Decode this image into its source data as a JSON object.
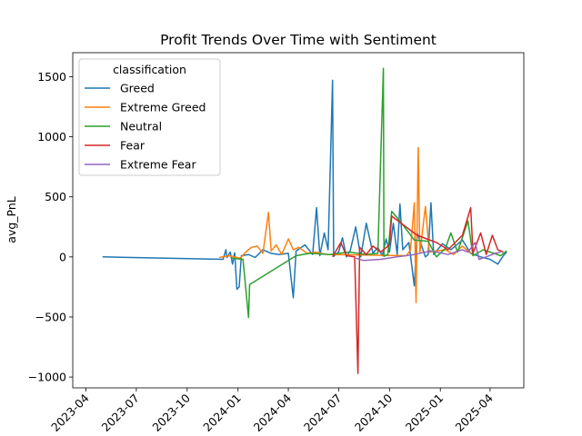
{
  "chart_data": {
    "type": "line",
    "title": "Profit Trends Over Time with Sentiment",
    "xlabel": "",
    "ylabel": "avg_PnL",
    "xlim": [
      "2023-03-08",
      "2025-06-01"
    ],
    "ylim": [
      -1090,
      1700
    ],
    "x_ticks": [
      "2023-04",
      "2023-07",
      "2023-10",
      "2024-01",
      "2024-04",
      "2024-07",
      "2024-10",
      "2025-01",
      "2025-04"
    ],
    "y_ticks": [
      -1000,
      -500,
      0,
      500,
      1000,
      1500
    ],
    "grid": false,
    "legend": {
      "title": "classification",
      "position": "top-left"
    },
    "series": [
      {
        "name": "Greed",
        "color": "#1f77b4",
        "points": [
          [
            "2023-05-01",
            0
          ],
          [
            "2023-12-05",
            -20
          ],
          [
            "2023-12-10",
            60
          ],
          [
            "2023-12-12",
            -5
          ],
          [
            "2023-12-18",
            40
          ],
          [
            "2023-12-22",
            -60
          ],
          [
            "2023-12-26",
            35
          ],
          [
            "2023-12-30",
            -270
          ],
          [
            "2024-01-03",
            -250
          ],
          [
            "2024-01-07",
            10
          ],
          [
            "2024-01-20",
            20
          ],
          [
            "2024-02-01",
            -5
          ],
          [
            "2024-02-15",
            60
          ],
          [
            "2024-03-01",
            30
          ],
          [
            "2024-03-15",
            20
          ],
          [
            "2024-04-01",
            30
          ],
          [
            "2024-04-10",
            -340
          ],
          [
            "2024-04-15",
            50
          ],
          [
            "2024-05-01",
            100
          ],
          [
            "2024-05-15",
            20
          ],
          [
            "2024-05-22",
            410
          ],
          [
            "2024-05-28",
            10
          ],
          [
            "2024-06-05",
            200
          ],
          [
            "2024-06-12",
            60
          ],
          [
            "2024-06-20",
            1470
          ],
          [
            "2024-06-22",
            5
          ],
          [
            "2024-07-01",
            40
          ],
          [
            "2024-07-08",
            160
          ],
          [
            "2024-07-15",
            0
          ],
          [
            "2024-07-22",
            50
          ],
          [
            "2024-08-01",
            250
          ],
          [
            "2024-08-10",
            0
          ],
          [
            "2024-08-20",
            280
          ],
          [
            "2024-09-01",
            30
          ],
          [
            "2024-09-10",
            80
          ],
          [
            "2024-09-18",
            10
          ],
          [
            "2024-09-25",
            150
          ],
          [
            "2024-10-01",
            40
          ],
          [
            "2024-10-08",
            280
          ],
          [
            "2024-10-15",
            20
          ],
          [
            "2024-10-20",
            440
          ],
          [
            "2024-10-25",
            60
          ],
          [
            "2024-11-05",
            120
          ],
          [
            "2024-11-15",
            -240
          ],
          [
            "2024-11-20",
            200
          ],
          [
            "2024-12-05",
            0
          ],
          [
            "2024-12-10",
            20
          ],
          [
            "2024-12-15",
            450
          ],
          [
            "2024-12-20",
            20
          ],
          [
            "2025-01-05",
            110
          ],
          [
            "2025-01-20",
            60
          ],
          [
            "2025-02-10",
            140
          ],
          [
            "2025-02-25",
            30
          ],
          [
            "2025-03-15",
            0
          ],
          [
            "2025-04-01",
            -20
          ],
          [
            "2025-04-15",
            -60
          ],
          [
            "2025-04-25",
            10
          ],
          [
            "2025-05-01",
            40
          ]
        ]
      },
      {
        "name": "Extreme Greed",
        "color": "#ff7f0e",
        "points": [
          [
            "2023-11-28",
            -5
          ],
          [
            "2023-12-15",
            10
          ],
          [
            "2024-01-05",
            -10
          ],
          [
            "2024-01-15",
            40
          ],
          [
            "2024-01-25",
            80
          ],
          [
            "2024-02-05",
            90
          ],
          [
            "2024-02-15",
            30
          ],
          [
            "2024-02-25",
            370
          ],
          [
            "2024-03-01",
            50
          ],
          [
            "2024-03-10",
            100
          ],
          [
            "2024-03-20",
            20
          ],
          [
            "2024-04-01",
            150
          ],
          [
            "2024-04-10",
            60
          ],
          [
            "2024-04-20",
            80
          ],
          [
            "2024-05-05",
            30
          ],
          [
            "2024-05-20",
            40
          ],
          [
            "2024-06-10",
            20
          ],
          [
            "2024-11-01",
            10
          ],
          [
            "2024-11-08",
            60
          ],
          [
            "2024-11-15",
            450
          ],
          [
            "2024-11-18",
            -380
          ],
          [
            "2024-11-22",
            910
          ],
          [
            "2024-11-25",
            30
          ],
          [
            "2024-12-05",
            420
          ],
          [
            "2024-12-12",
            40
          ],
          [
            "2025-01-10",
            60
          ],
          [
            "2025-01-25",
            20
          ],
          [
            "2025-02-10",
            90
          ],
          [
            "2025-02-25",
            30
          ]
        ]
      },
      {
        "name": "Neutral",
        "color": "#2ca02c",
        "points": [
          [
            "2023-12-20",
            -10
          ],
          [
            "2024-01-10",
            -20
          ],
          [
            "2024-01-20",
            -505
          ],
          [
            "2024-01-22",
            -230
          ],
          [
            "2024-04-15",
            10
          ],
          [
            "2024-05-10",
            30
          ],
          [
            "2024-06-15",
            20
          ],
          [
            "2024-07-20",
            40
          ],
          [
            "2024-08-20",
            20
          ],
          [
            "2024-09-10",
            30
          ],
          [
            "2024-09-20",
            1570
          ],
          [
            "2024-09-21",
            5
          ],
          [
            "2024-09-28",
            20
          ],
          [
            "2024-10-05",
            380
          ],
          [
            "2024-10-20",
            300
          ],
          [
            "2024-11-15",
            140
          ],
          [
            "2024-12-10",
            130
          ],
          [
            "2024-12-25",
            0
          ],
          [
            "2025-01-10",
            70
          ],
          [
            "2025-01-20",
            200
          ],
          [
            "2025-02-01",
            40
          ],
          [
            "2025-02-20",
            300
          ],
          [
            "2025-03-01",
            10
          ],
          [
            "2025-03-20",
            60
          ],
          [
            "2025-04-20",
            10
          ],
          [
            "2025-05-01",
            50
          ]
        ]
      },
      {
        "name": "Fear",
        "color": "#d62728",
        "points": [
          [
            "2024-06-20",
            0
          ],
          [
            "2024-07-05",
            120
          ],
          [
            "2024-07-15",
            10
          ],
          [
            "2024-07-30",
            0
          ],
          [
            "2024-08-05",
            -970
          ],
          [
            "2024-08-08",
            80
          ],
          [
            "2024-08-20",
            20
          ],
          [
            "2024-09-01",
            90
          ],
          [
            "2024-09-15",
            40
          ],
          [
            "2024-10-01",
            100
          ],
          [
            "2024-10-05",
            340
          ],
          [
            "2024-11-20",
            180
          ],
          [
            "2024-12-25",
            120
          ],
          [
            "2025-01-15",
            60
          ],
          [
            "2025-02-10",
            180
          ],
          [
            "2025-02-25",
            410
          ],
          [
            "2025-03-01",
            30
          ],
          [
            "2025-03-15",
            200
          ],
          [
            "2025-03-25",
            20
          ],
          [
            "2025-04-05",
            180
          ],
          [
            "2025-04-15",
            60
          ],
          [
            "2025-04-25",
            40
          ]
        ]
      },
      {
        "name": "Extreme Fear",
        "color": "#9467bd",
        "points": [
          [
            "2024-08-01",
            -10
          ],
          [
            "2024-08-15",
            -30
          ],
          [
            "2024-09-15",
            -20
          ],
          [
            "2024-10-15",
            0
          ],
          [
            "2024-11-15",
            20
          ],
          [
            "2024-12-15",
            50
          ],
          [
            "2025-01-15",
            20
          ],
          [
            "2025-02-10",
            60
          ],
          [
            "2025-02-20",
            40
          ],
          [
            "2025-03-05",
            120
          ],
          [
            "2025-03-12",
            -20
          ],
          [
            "2025-03-25",
            0
          ],
          [
            "2025-04-10",
            30
          ],
          [
            "2025-04-20",
            40
          ]
        ]
      }
    ]
  }
}
